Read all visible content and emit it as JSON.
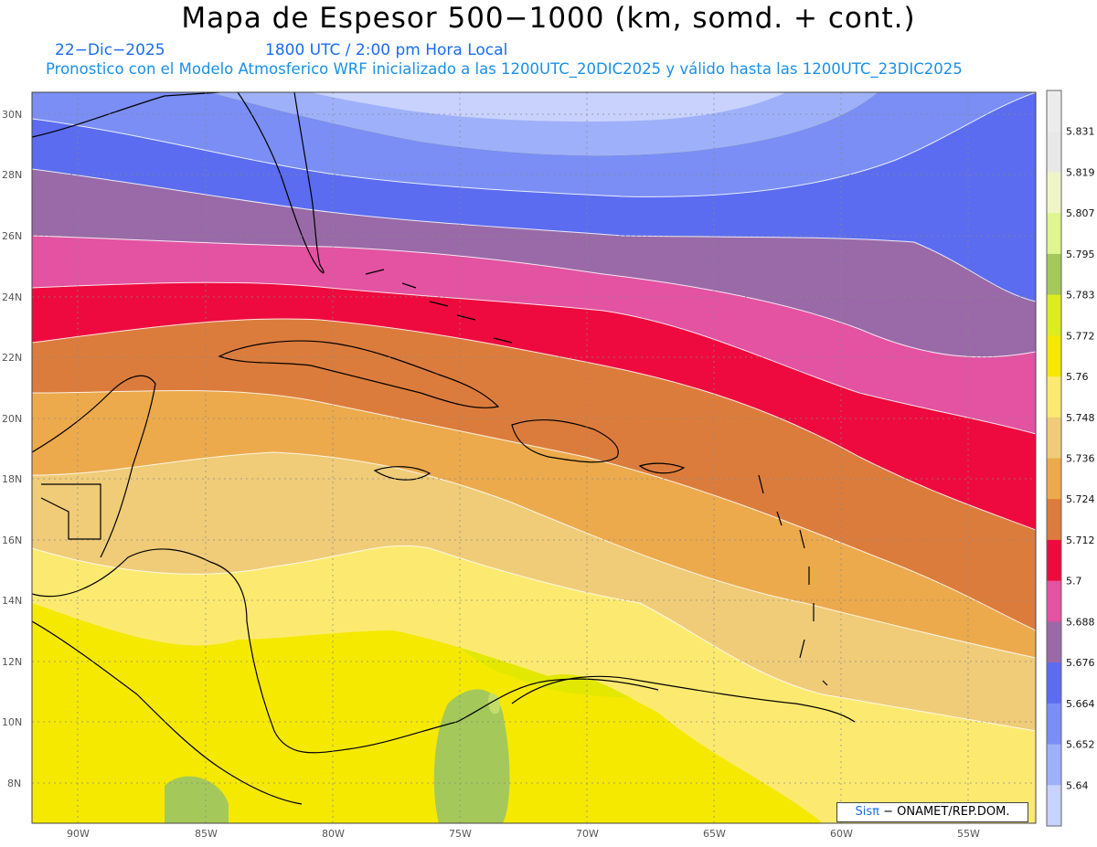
{
  "title": "Mapa de Espesor 500−1000 (km, somd. + cont.)",
  "date": "22−Dic−2025",
  "time": "1800 UTC / 2:00 pm Hora Local",
  "description": "Pronostico con el Modelo Atmosferico WRF inicializado a las 1200UTC_20DIC2025 y válido hasta las  1200UTC_23DIC2025",
  "credit": {
    "logo": "Sisπ",
    "text": "− ONAMET/REP.DOM."
  },
  "lat_labels": [
    "30N",
    "28N",
    "26N",
    "24N",
    "22N",
    "20N",
    "18N",
    "16N",
    "14N",
    "12N",
    "10N",
    "8N"
  ],
  "lon_labels": [
    "90W",
    "85W",
    "80W",
    "75W",
    "70W",
    "65W",
    "60W",
    "55W"
  ],
  "colorbar": {
    "labels": [
      "5.831",
      "5.819",
      "5.807",
      "5.795",
      "5.783",
      "5.772",
      "5.76",
      "5.748",
      "5.736",
      "5.724",
      "5.712",
      "5.7",
      "5.688",
      "5.676",
      "5.664",
      "5.652",
      "5.64"
    ],
    "colors": [
      "#e8e8e8",
      "#f0f5c8",
      "#def590",
      "#a4c95a",
      "#dced1e",
      "#f5e900",
      "#fcea70",
      "#f0cc78",
      "#ecaa4c",
      "#dc7c3c",
      "#ee0a3e",
      "#e452a2",
      "#9a6aa8",
      "#5b6cf0",
      "#7a8ef5",
      "#9fb0fa",
      "#c8d2fc"
    ]
  }
}
